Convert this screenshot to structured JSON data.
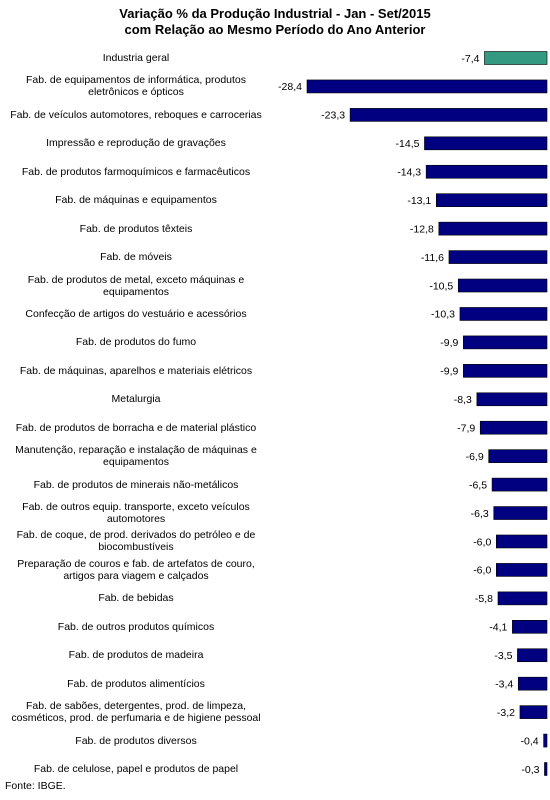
{
  "chart_data": {
    "type": "hbar",
    "title": "Variação % da Produção Industrial - Jan - Set/2015",
    "subtitle": "com Relação ao Mesmo Período do Ano Anterior",
    "categories": [
      "Industria geral",
      "Fab. de equipamentos de informática, produtos eletrônicos e ópticos",
      "Fab. de veículos automotores, reboques e carrocerias",
      "Impressão e reprodução de gravações",
      "Fab. de produtos farmoquímicos e farmacêuticos",
      "Fab. de máquinas e equipamentos",
      "Fab. de produtos têxteis",
      "Fab. de móveis",
      "Fab. de produtos de metal, exceto máquinas e equipamentos",
      "Confecção de artigos do vestuário e acessórios",
      "Fab. de produtos do fumo",
      "Fab. de máquinas, aparelhos e materiais elétricos",
      "Metalurgia",
      "Fab. de produtos de borracha e de material plástico",
      "Manutenção, reparação e instalação de máquinas e equipamentos",
      "Fab. de produtos de minerais não-metálicos",
      "Fab. de outros equip. transporte, exceto veículos automotores",
      "Fab. de coque, de prod. derivados do petróleo e de biocombustíveis",
      "Preparação de couros e fab. de artefatos de couro, artigos para viagem e calçados",
      "Fab. de bebidas",
      "Fab. de outros produtos químicos",
      "Fab. de produtos de madeira",
      "Fab. de produtos alimentícios",
      "Fab. de sabões, detergentes, prod. de limpeza, cosméticos, prod. de perfumaria e de higiene pessoal",
      "Fab. de produtos diversos",
      "Fab. de celulose, papel e produtos de papel"
    ],
    "values": [
      -7.4,
      -28.4,
      -23.3,
      -14.5,
      -14.3,
      -13.1,
      -12.8,
      -11.6,
      -10.5,
      -10.3,
      -9.9,
      -9.9,
      -8.3,
      -7.9,
      -6.9,
      -6.5,
      -6.3,
      -6.0,
      -6.0,
      -5.8,
      -4.1,
      -3.5,
      -3.4,
      -3.2,
      -0.4,
      -0.3
    ],
    "value_labels": [
      "-7,4",
      "-28,4",
      "-23,3",
      "-14,5",
      "-14,3",
      "-13,1",
      "-12,8",
      "-11,6",
      "-10,5",
      "-10,3",
      "-9,9",
      "-9,9",
      "-8,3",
      "-7,9",
      "-6,9",
      "-6,5",
      "-6,3",
      "-6,0",
      "-6,0",
      "-5,8",
      "-4,1",
      "-3,5",
      "-3,4",
      "-3,2",
      "-0,4",
      "-0,3"
    ],
    "colors": [
      "#339980",
      "#000080",
      "#000080",
      "#000080",
      "#000080",
      "#000080",
      "#000080",
      "#000080",
      "#000080",
      "#000080",
      "#000080",
      "#000080",
      "#000080",
      "#000080",
      "#000080",
      "#000080",
      "#000080",
      "#000080",
      "#000080",
      "#000080",
      "#000080",
      "#000080",
      "#000080",
      "#000080",
      "#000080",
      "#000080"
    ],
    "source": "Fonte: IBGE."
  }
}
